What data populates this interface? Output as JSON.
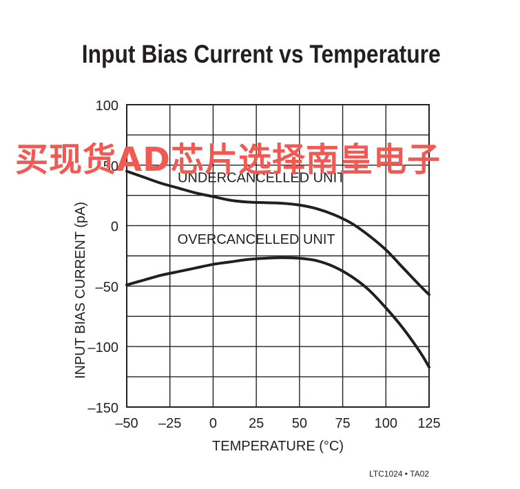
{
  "title": "Input Bias Current vs Temperature",
  "watermark": "买现货AD芯片选择南皇电子",
  "footnote": "LTC1024 • TA02",
  "chart_data": {
    "type": "line",
    "xlabel": "TEMPERATURE (°C)",
    "ylabel": "INPUT BIAS CURRENT (pA)",
    "xlim": [
      -50,
      125
    ],
    "ylim": [
      -150,
      100
    ],
    "xticks": [
      -50,
      -25,
      0,
      25,
      50,
      75,
      100,
      125
    ],
    "xtick_labels": [
      "–50",
      "–25",
      "0",
      "25",
      "50",
      "75",
      "100",
      "125"
    ],
    "yticks": [
      -150,
      -100,
      -50,
      0,
      50,
      100
    ],
    "ytick_labels": [
      "–150",
      "–100",
      "–50",
      "0",
      "50",
      "100"
    ],
    "grid": true,
    "grid_x_step": 25,
    "grid_y_step": 25,
    "series": [
      {
        "name": "UNDERCANCELLED UNIT",
        "x": [
          -50,
          -40,
          -30,
          -20,
          -10,
          0,
          10,
          20,
          30,
          40,
          50,
          60,
          70,
          80,
          90,
          100,
          110,
          120,
          125
        ],
        "y": [
          45,
          40,
          35,
          31,
          27,
          24,
          21,
          19.5,
          19,
          18.5,
          17,
          14,
          9,
          2,
          -8,
          -20,
          -35,
          -50,
          -57
        ]
      },
      {
        "name": "OVERCANCELLED UNIT",
        "x": [
          -50,
          -40,
          -30,
          -20,
          -10,
          0,
          10,
          20,
          30,
          40,
          50,
          60,
          70,
          80,
          90,
          100,
          110,
          120,
          125
        ],
        "y": [
          -49,
          -45,
          -41,
          -38,
          -35,
          -32,
          -30,
          -28,
          -27,
          -26.5,
          -27,
          -29,
          -34,
          -42,
          -53,
          -68,
          -85,
          -105,
          -117
        ]
      }
    ],
    "annotations": [
      {
        "text": "UNDERCANCELLED UNIT",
        "x": 28,
        "y": 36
      },
      {
        "text": "OVERCANCELLED UNIT",
        "x": 25,
        "y": -15
      }
    ]
  }
}
